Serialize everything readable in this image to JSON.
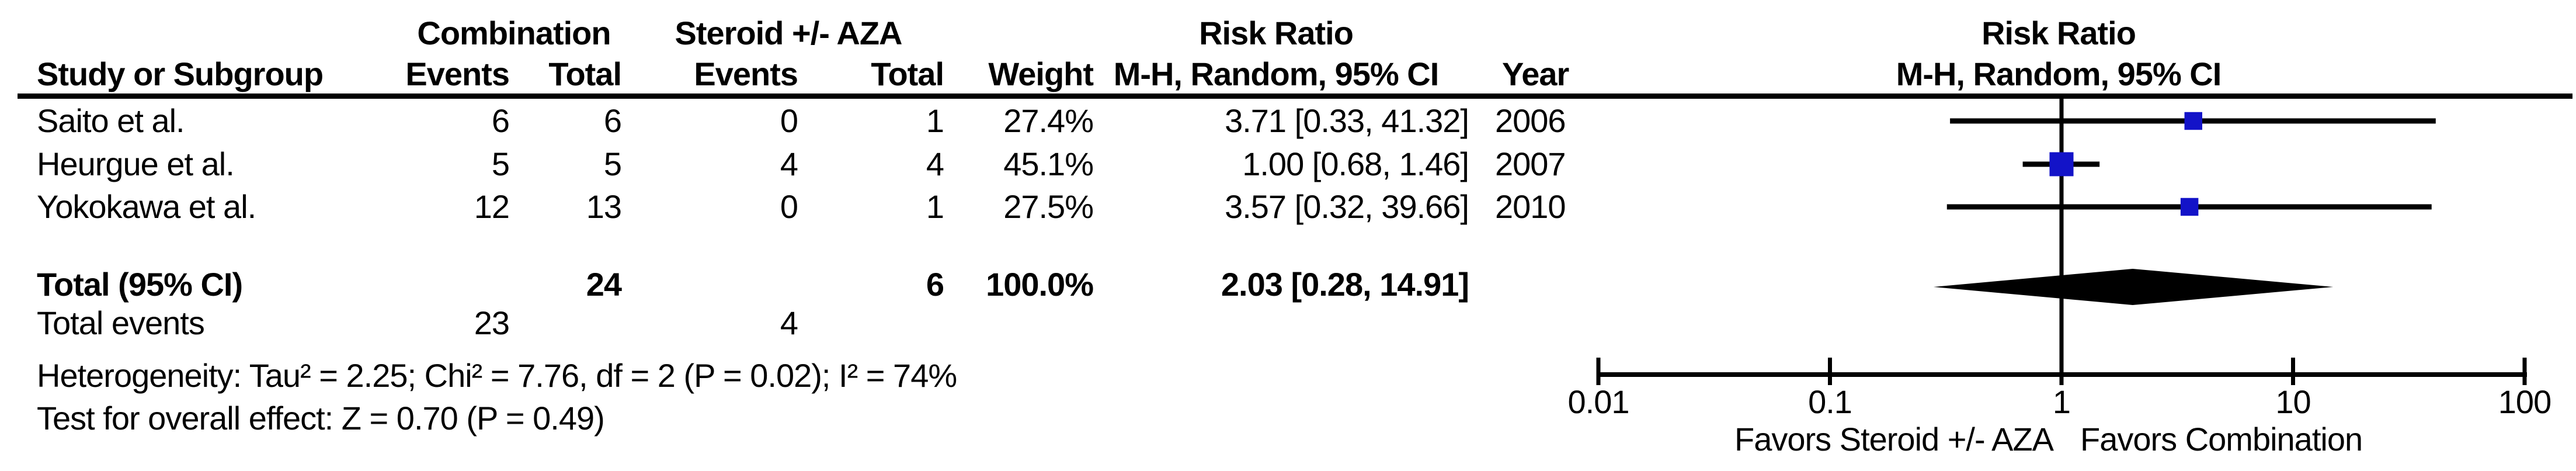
{
  "table": {
    "group_headers": {
      "combination": "Combination",
      "steroid": "Steroid +/- AZA",
      "risk_ratio_col": "Risk Ratio"
    },
    "headers": {
      "study": "Study or Subgroup",
      "events_combination": "Events",
      "total_combination": "Total",
      "events_steroid": "Events",
      "total_steroid": "Total",
      "weight": "Weight",
      "ci_method": "M-H, Random, 95% CI",
      "year": "Year"
    },
    "rows": [
      {
        "study": "Saito et al.",
        "events_c": "6",
        "total_c": "6",
        "events_s": "0",
        "total_s": "1",
        "weight": "27.4%",
        "ci": "3.71 [0.33, 41.32]",
        "year": "2006"
      },
      {
        "study": "Heurgue et al.",
        "events_c": "5",
        "total_c": "5",
        "events_s": "4",
        "total_s": "4",
        "weight": "45.1%",
        "ci": "1.00 [0.68, 1.46]",
        "year": "2007"
      },
      {
        "study": "Yokokawa et al.",
        "events_c": "12",
        "total_c": "13",
        "events_s": "0",
        "total_s": "1",
        "weight": "27.5%",
        "ci": "3.57 [0.32, 39.66]",
        "year": "2010"
      }
    ],
    "total_row": {
      "label": "Total (95% CI)",
      "total_c": "24",
      "total_s": "6",
      "weight": "100.0%",
      "ci": "2.03 [0.28, 14.91]"
    },
    "total_events_row": {
      "label": "Total events",
      "events_c": "23",
      "events_s": "4"
    },
    "heterogeneity": "Heterogeneity: Tau² = 2.25; Chi² = 7.76, df = 2 (P = 0.02); I² = 74%",
    "overall_effect": "Test for overall effect: Z = 0.70 (P = 0.49)"
  },
  "plot": {
    "header_line1": "Risk Ratio",
    "header_line2": "M-H, Random, 95% CI",
    "favors_left": "Favors Steroid +/- AZA",
    "favors_right": "Favors Combination",
    "marker_color": "#1313C8",
    "line_color": "#000000"
  },
  "chart_data": {
    "type": "forest",
    "effect_measure": "Risk Ratio",
    "model": "M-H, Random, 95% CI",
    "x_scale": "log10",
    "x_ticks": [
      "0.01",
      "0.1",
      "1",
      "10",
      "100"
    ],
    "xlim": [
      0.01,
      100
    ],
    "studies": [
      {
        "name": "Saito et al.",
        "rr": 3.71,
        "ci_low": 0.33,
        "ci_high": 41.32,
        "weight_pct": 27.4,
        "year": 2006
      },
      {
        "name": "Heurgue et al.",
        "rr": 1.0,
        "ci_low": 0.68,
        "ci_high": 1.46,
        "weight_pct": 45.1,
        "year": 2007
      },
      {
        "name": "Yokokawa et al.",
        "rr": 3.57,
        "ci_low": 0.32,
        "ci_high": 39.66,
        "weight_pct": 27.5,
        "year": 2010
      }
    ],
    "total": {
      "rr": 2.03,
      "ci_low": 0.28,
      "ci_high": 14.91,
      "weight_pct": 100.0,
      "heterogeneity": {
        "tau2": 2.25,
        "chi2": 7.76,
        "df": 2,
        "p": 0.02,
        "i2_pct": 74
      },
      "overall_effect": {
        "z": 0.7,
        "p": 0.49
      }
    }
  }
}
